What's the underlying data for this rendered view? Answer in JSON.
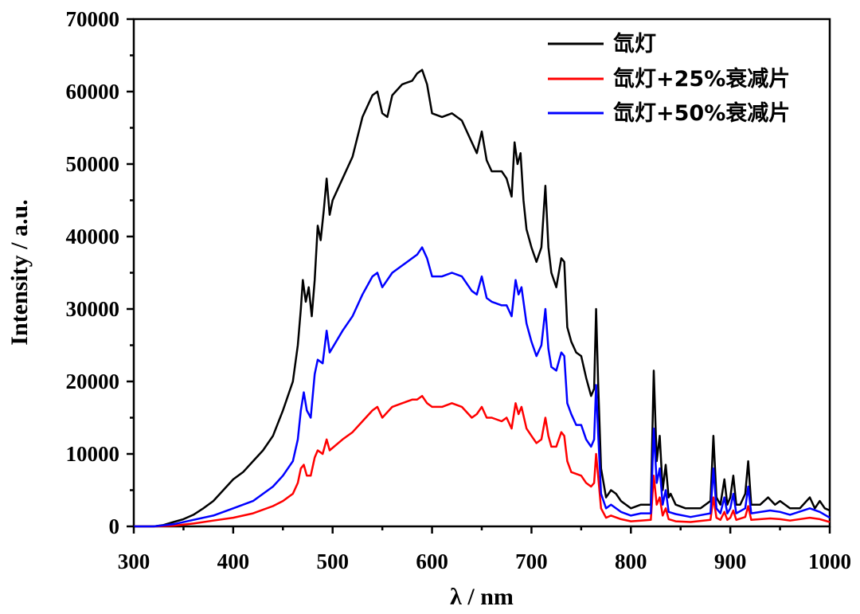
{
  "chart_data": {
    "type": "line",
    "title": "",
    "xlabel": "λ  / nm",
    "ylabel": "Intensity / a.u.",
    "xlim": [
      300,
      1000
    ],
    "ylim": [
      0,
      70000
    ],
    "x_ticks": [
      300,
      400,
      500,
      600,
      700,
      800,
      900,
      1000
    ],
    "y_ticks": [
      0,
      10000,
      20000,
      30000,
      40000,
      50000,
      60000,
      70000
    ],
    "x_tick_labels": [
      "300",
      "400",
      "500",
      "600",
      "700",
      "800",
      "900",
      "1000"
    ],
    "y_tick_labels": [
      "0",
      "10000",
      "20000",
      "30000",
      "40000",
      "50000",
      "60000",
      "70000"
    ],
    "legend_position": "top-right",
    "grid": false,
    "series": [
      {
        "name": "氙灯",
        "color": "#000000",
        "points": [
          [
            300,
            0
          ],
          [
            320,
            0
          ],
          [
            330,
            200
          ],
          [
            340,
            600
          ],
          [
            350,
            1000
          ],
          [
            360,
            1600
          ],
          [
            370,
            2500
          ],
          [
            380,
            3500
          ],
          [
            390,
            5000
          ],
          [
            400,
            6500
          ],
          [
            410,
            7500
          ],
          [
            420,
            9000
          ],
          [
            430,
            10500
          ],
          [
            440,
            12500
          ],
          [
            450,
            16000
          ],
          [
            460,
            20000
          ],
          [
            465,
            25000
          ],
          [
            468,
            30000
          ],
          [
            470,
            34000
          ],
          [
            473,
            31000
          ],
          [
            476,
            33000
          ],
          [
            479,
            29000
          ],
          [
            482,
            34000
          ],
          [
            485,
            41500
          ],
          [
            488,
            39500
          ],
          [
            491,
            43500
          ],
          [
            494,
            48000
          ],
          [
            497,
            43000
          ],
          [
            500,
            45000
          ],
          [
            510,
            48000
          ],
          [
            520,
            51000
          ],
          [
            530,
            56500
          ],
          [
            540,
            59500
          ],
          [
            545,
            60000
          ],
          [
            550,
            57000
          ],
          [
            555,
            56500
          ],
          [
            560,
            59500
          ],
          [
            570,
            61000
          ],
          [
            580,
            61500
          ],
          [
            585,
            62500
          ],
          [
            590,
            63000
          ],
          [
            595,
            61000
          ],
          [
            600,
            57000
          ],
          [
            610,
            56500
          ],
          [
            620,
            57000
          ],
          [
            630,
            56000
          ],
          [
            640,
            53000
          ],
          [
            645,
            51500
          ],
          [
            650,
            54500
          ],
          [
            655,
            50500
          ],
          [
            660,
            49000
          ],
          [
            670,
            49000
          ],
          [
            675,
            48000
          ],
          [
            680,
            45500
          ],
          [
            683,
            53000
          ],
          [
            686,
            50000
          ],
          [
            689,
            51500
          ],
          [
            692,
            45000
          ],
          [
            695,
            41000
          ],
          [
            700,
            38500
          ],
          [
            705,
            36500
          ],
          [
            710,
            38500
          ],
          [
            714,
            47000
          ],
          [
            717,
            38500
          ],
          [
            720,
            35000
          ],
          [
            725,
            33000
          ],
          [
            730,
            37000
          ],
          [
            733,
            36500
          ],
          [
            736,
            27500
          ],
          [
            740,
            25500
          ],
          [
            745,
            24000
          ],
          [
            750,
            23500
          ],
          [
            755,
            20500
          ],
          [
            760,
            18000
          ],
          [
            763,
            19000
          ],
          [
            765,
            30000
          ],
          [
            767,
            20000
          ],
          [
            770,
            8000
          ],
          [
            775,
            4000
          ],
          [
            780,
            5000
          ],
          [
            785,
            4500
          ],
          [
            790,
            3500
          ],
          [
            800,
            2500
          ],
          [
            810,
            3000
          ],
          [
            820,
            3000
          ],
          [
            823,
            21500
          ],
          [
            826,
            9000
          ],
          [
            829,
            12500
          ],
          [
            832,
            5000
          ],
          [
            835,
            8500
          ],
          [
            838,
            4000
          ],
          [
            840,
            4500
          ],
          [
            845,
            3000
          ],
          [
            855,
            2500
          ],
          [
            870,
            2500
          ],
          [
            880,
            3500
          ],
          [
            883,
            12500
          ],
          [
            886,
            4000
          ],
          [
            890,
            3000
          ],
          [
            894,
            6500
          ],
          [
            897,
            3000
          ],
          [
            900,
            4000
          ],
          [
            903,
            7000
          ],
          [
            906,
            3000
          ],
          [
            910,
            3000
          ],
          [
            915,
            4500
          ],
          [
            918,
            9000
          ],
          [
            921,
            3000
          ],
          [
            930,
            3000
          ],
          [
            938,
            4000
          ],
          [
            945,
            3000
          ],
          [
            950,
            3500
          ],
          [
            960,
            2500
          ],
          [
            970,
            2500
          ],
          [
            980,
            4000
          ],
          [
            985,
            2500
          ],
          [
            990,
            3500
          ],
          [
            995,
            2500
          ],
          [
            1000,
            2200
          ]
        ]
      },
      {
        "name": "氙灯+25%衰减片",
        "color": "#ff0000",
        "points": [
          [
            300,
            0
          ],
          [
            320,
            0
          ],
          [
            340,
            100
          ],
          [
            360,
            400
          ],
          [
            380,
            800
          ],
          [
            400,
            1200
          ],
          [
            420,
            1800
          ],
          [
            440,
            2800
          ],
          [
            450,
            3500
          ],
          [
            460,
            4500
          ],
          [
            465,
            6000
          ],
          [
            468,
            8000
          ],
          [
            471,
            8500
          ],
          [
            474,
            7000
          ],
          [
            478,
            7000
          ],
          [
            482,
            9500
          ],
          [
            485,
            10500
          ],
          [
            490,
            10000
          ],
          [
            494,
            12000
          ],
          [
            497,
            10500
          ],
          [
            510,
            12000
          ],
          [
            520,
            13000
          ],
          [
            530,
            14500
          ],
          [
            540,
            16000
          ],
          [
            545,
            16500
          ],
          [
            550,
            15000
          ],
          [
            560,
            16500
          ],
          [
            570,
            17000
          ],
          [
            580,
            17500
          ],
          [
            585,
            17500
          ],
          [
            590,
            18000
          ],
          [
            595,
            17000
          ],
          [
            600,
            16500
          ],
          [
            610,
            16500
          ],
          [
            620,
            17000
          ],
          [
            630,
            16500
          ],
          [
            640,
            15000
          ],
          [
            645,
            15500
          ],
          [
            650,
            16500
          ],
          [
            655,
            15000
          ],
          [
            660,
            15000
          ],
          [
            670,
            14500
          ],
          [
            675,
            15000
          ],
          [
            680,
            13500
          ],
          [
            684,
            17000
          ],
          [
            687,
            15500
          ],
          [
            690,
            16500
          ],
          [
            695,
            13500
          ],
          [
            700,
            12500
          ],
          [
            705,
            11500
          ],
          [
            710,
            12000
          ],
          [
            714,
            15000
          ],
          [
            717,
            12500
          ],
          [
            720,
            11000
          ],
          [
            725,
            11000
          ],
          [
            730,
            13000
          ],
          [
            733,
            12500
          ],
          [
            736,
            9000
          ],
          [
            740,
            7500
          ],
          [
            750,
            7000
          ],
          [
            755,
            6000
          ],
          [
            760,
            5500
          ],
          [
            763,
            6000
          ],
          [
            765,
            10000
          ],
          [
            767,
            7000
          ],
          [
            770,
            2500
          ],
          [
            775,
            1200
          ],
          [
            780,
            1500
          ],
          [
            790,
            1000
          ],
          [
            800,
            700
          ],
          [
            810,
            800
          ],
          [
            820,
            900
          ],
          [
            823,
            7000
          ],
          [
            826,
            3000
          ],
          [
            829,
            4000
          ],
          [
            832,
            1500
          ],
          [
            835,
            2500
          ],
          [
            838,
            1000
          ],
          [
            845,
            700
          ],
          [
            860,
            600
          ],
          [
            880,
            900
          ],
          [
            883,
            4000
          ],
          [
            886,
            1200
          ],
          [
            890,
            900
          ],
          [
            894,
            2000
          ],
          [
            897,
            900
          ],
          [
            900,
            1200
          ],
          [
            903,
            2200
          ],
          [
            906,
            900
          ],
          [
            915,
            1300
          ],
          [
            918,
            2800
          ],
          [
            921,
            900
          ],
          [
            940,
            1100
          ],
          [
            950,
            1000
          ],
          [
            960,
            800
          ],
          [
            980,
            1200
          ],
          [
            990,
            1000
          ],
          [
            1000,
            600
          ]
        ]
      },
      {
        "name": "氙灯+50%衰减片",
        "color": "#0000ff",
        "points": [
          [
            300,
            0
          ],
          [
            320,
            0
          ],
          [
            340,
            300
          ],
          [
            360,
            900
          ],
          [
            380,
            1500
          ],
          [
            400,
            2500
          ],
          [
            420,
            3500
          ],
          [
            440,
            5500
          ],
          [
            450,
            7000
          ],
          [
            460,
            9000
          ],
          [
            465,
            12000
          ],
          [
            468,
            16000
          ],
          [
            471,
            18500
          ],
          [
            474,
            16000
          ],
          [
            478,
            15000
          ],
          [
            482,
            21000
          ],
          [
            485,
            23000
          ],
          [
            490,
            22500
          ],
          [
            494,
            27000
          ],
          [
            497,
            24000
          ],
          [
            510,
            27000
          ],
          [
            520,
            29000
          ],
          [
            530,
            32000
          ],
          [
            540,
            34500
          ],
          [
            545,
            35000
          ],
          [
            550,
            33000
          ],
          [
            560,
            35000
          ],
          [
            570,
            36000
          ],
          [
            580,
            37000
          ],
          [
            585,
            37500
          ],
          [
            590,
            38500
          ],
          [
            595,
            37000
          ],
          [
            600,
            34500
          ],
          [
            610,
            34500
          ],
          [
            620,
            35000
          ],
          [
            630,
            34500
          ],
          [
            640,
            32500
          ],
          [
            645,
            32000
          ],
          [
            650,
            34500
          ],
          [
            655,
            31500
          ],
          [
            660,
            31000
          ],
          [
            670,
            30500
          ],
          [
            675,
            30500
          ],
          [
            680,
            29000
          ],
          [
            684,
            34000
          ],
          [
            687,
            32000
          ],
          [
            690,
            33000
          ],
          [
            695,
            28000
          ],
          [
            700,
            25500
          ],
          [
            705,
            23500
          ],
          [
            710,
            25000
          ],
          [
            714,
            30000
          ],
          [
            717,
            24500
          ],
          [
            720,
            22000
          ],
          [
            725,
            21500
          ],
          [
            730,
            24000
          ],
          [
            733,
            23500
          ],
          [
            736,
            17000
          ],
          [
            740,
            15500
          ],
          [
            745,
            14000
          ],
          [
            750,
            14000
          ],
          [
            755,
            12000
          ],
          [
            760,
            11000
          ],
          [
            763,
            12000
          ],
          [
            765,
            19500
          ],
          [
            767,
            13000
          ],
          [
            770,
            4500
          ],
          [
            775,
            2500
          ],
          [
            780,
            3000
          ],
          [
            790,
            2000
          ],
          [
            800,
            1500
          ],
          [
            810,
            1800
          ],
          [
            820,
            1800
          ],
          [
            823,
            13500
          ],
          [
            826,
            6000
          ],
          [
            829,
            8000
          ],
          [
            832,
            3000
          ],
          [
            835,
            5000
          ],
          [
            838,
            2000
          ],
          [
            845,
            1700
          ],
          [
            860,
            1300
          ],
          [
            880,
            1800
          ],
          [
            883,
            8000
          ],
          [
            886,
            2500
          ],
          [
            890,
            1800
          ],
          [
            894,
            4000
          ],
          [
            897,
            1800
          ],
          [
            900,
            2500
          ],
          [
            903,
            4500
          ],
          [
            906,
            1800
          ],
          [
            915,
            2500
          ],
          [
            918,
            5500
          ],
          [
            921,
            1800
          ],
          [
            940,
            2200
          ],
          [
            950,
            2000
          ],
          [
            960,
            1600
          ],
          [
            980,
            2500
          ],
          [
            990,
            2000
          ],
          [
            1000,
            1200
          ]
        ]
      }
    ]
  }
}
